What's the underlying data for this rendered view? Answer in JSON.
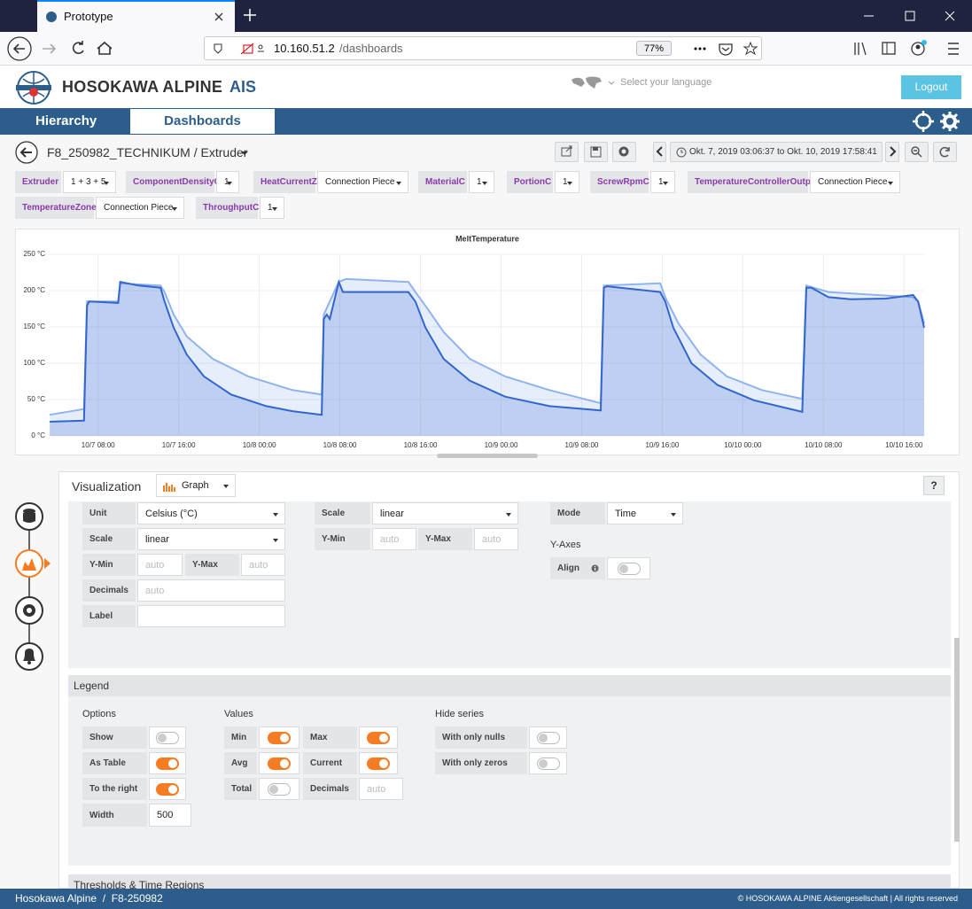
{
  "browser": {
    "tab_title": "Prototype",
    "url_host": "10.160.51.2",
    "url_path": "/dashboards",
    "zoom": "77%"
  },
  "header": {
    "brand": "HOSOKAWA ALPINE",
    "brand_suffix": "AIS",
    "language": "Select your language",
    "logout": "Logout"
  },
  "nav": {
    "tabs": [
      "Hierarchy",
      "Dashboards"
    ]
  },
  "breadcrumb": "F8_250982_TECHNIKUM / Extruder",
  "time_range": "Okt. 7, 2019 03:06:37 to Okt. 10, 2019 17:58:41",
  "variables": [
    {
      "name": "Extruder",
      "value": "1 + 3 + 5"
    },
    {
      "name": "ComponentDensityC",
      "value": "1"
    },
    {
      "name": "HeatCurrentZ",
      "value": "Connection Piece"
    },
    {
      "name": "MaterialC",
      "value": "1"
    },
    {
      "name": "PortionC",
      "value": "1"
    },
    {
      "name": "ScrewRpmC",
      "value": "1"
    },
    {
      "name": "TemperatureControllerOutput",
      "value": "Connection Piece"
    },
    {
      "name": "TemperatureZone",
      "value": "Connection Piece"
    },
    {
      "name": "ThroughputC",
      "value": "1"
    }
  ],
  "chart_data": {
    "type": "line",
    "title": "MeltTemperature",
    "area": true,
    "grid": true,
    "xlim": [
      3.1,
      90.0
    ],
    "xticks": [
      {
        "value": 8,
        "label": "10/7 08:00"
      },
      {
        "value": 16,
        "label": "10/7 16:00"
      },
      {
        "value": 24,
        "label": "10/8 00:00"
      },
      {
        "value": 32,
        "label": "10/8 08:00"
      },
      {
        "value": 40,
        "label": "10/8 16:00"
      },
      {
        "value": 48,
        "label": "10/9 00:00"
      },
      {
        "value": 56,
        "label": "10/9 08:00"
      },
      {
        "value": 64,
        "label": "10/9 16:00"
      },
      {
        "value": 72,
        "label": "10/10 00:00"
      },
      {
        "value": 80,
        "label": "10/10 08:00"
      },
      {
        "value": 88,
        "label": "10/10 16:00"
      }
    ],
    "ylim": [
      0,
      250
    ],
    "yticks": [
      {
        "value": 0,
        "label": "0 °C"
      },
      {
        "value": 50,
        "label": "50 °C"
      },
      {
        "value": 100,
        "label": "100 °C"
      },
      {
        "value": 150,
        "label": "150 °C"
      },
      {
        "value": 200,
        "label": "200 °C"
      },
      {
        "value": 250,
        "label": "250 °C"
      }
    ],
    "series": [
      {
        "color": "#8fb3ee",
        "x": [
          3.2,
          6.6,
          6.9,
          10.0,
          10.2,
          14.2,
          14.6,
          15.5,
          16.8,
          19.4,
          22.9,
          27.3,
          30.2,
          30.4,
          31.9,
          32.6,
          38.8,
          39.5,
          40.5,
          42.3,
          44.9,
          48.4,
          52.8,
          57.9,
          58.2,
          63.8,
          64.3,
          65.6,
          67.8,
          70.4,
          73.9,
          77.9,
          78.3,
          80.5,
          88.9,
          89.4,
          90.0
        ],
        "values": [
          29,
          37,
          185,
          185,
          210,
          207,
          198,
          167,
          137,
          106,
          82,
          63,
          57,
          167,
          212,
          216,
          212,
          198,
          179,
          143,
          106,
          82,
          63,
          45,
          207,
          210,
          191,
          155,
          112,
          82,
          63,
          51,
          207,
          198,
          191,
          185,
          155
        ]
      },
      {
        "color": "#3366cc",
        "x": [
          3.2,
          6.6,
          6.9,
          7.1,
          10.0,
          10.2,
          12.0,
          14.2,
          14.6,
          15.5,
          16.8,
          18.5,
          21.2,
          24.7,
          27.3,
          30.2,
          30.4,
          30.7,
          31.0,
          31.9,
          32.3,
          38.8,
          39.5,
          40.5,
          42.3,
          44.9,
          48.4,
          52.8,
          57.9,
          58.2,
          58.5,
          63.8,
          64.3,
          65.1,
          66.9,
          69.5,
          73.1,
          77.9,
          78.3,
          78.8,
          80.5,
          82.7,
          86.2,
          88.9,
          89.4,
          90.0
        ],
        "values": [
          19.5,
          21,
          179,
          185,
          183,
          212,
          207,
          204,
          185,
          149,
          112,
          82,
          57,
          41,
          34,
          29,
          161,
          167,
          161,
          212,
          198,
          198,
          185,
          149,
          106,
          76,
          54,
          41,
          35,
          204,
          206,
          198,
          185,
          149,
          100,
          70,
          49,
          33,
          204,
          204,
          191,
          188,
          189,
          194,
          185,
          149
        ]
      }
    ]
  },
  "editor": {
    "title": "Visualization",
    "visualization": "Graph",
    "left_axis": [
      {
        "label": "Unit",
        "value": "Celsius (°C)"
      },
      {
        "label": "Scale",
        "value": "linear"
      },
      {
        "label": "Y-Min",
        "placeholder": "auto"
      },
      {
        "label": "Y-Max",
        "placeholder": "auto"
      },
      {
        "label": "Decimals",
        "placeholder": "auto"
      },
      {
        "label": "Label"
      }
    ],
    "right_axis": [
      {
        "label": "Scale",
        "value": "linear"
      },
      {
        "label": "Y-Min",
        "placeholder": "auto"
      },
      {
        "label": "Y-Max",
        "placeholder": "auto"
      }
    ],
    "x_axis": [
      {
        "label": "Mode",
        "value": "Time"
      }
    ],
    "y_axes": {
      "title": "Y-Axes",
      "align": {
        "label": "Align",
        "on": false
      }
    }
  },
  "legend": {
    "title": "Legend",
    "options": {
      "title": "Options",
      "toggles": [
        {
          "label": "Show",
          "on": false
        },
        {
          "label": "As Table",
          "on": true
        },
        {
          "label": "To the right",
          "on": true
        }
      ],
      "width": {
        "label": "Width",
        "value": 500
      }
    },
    "values": {
      "title": "Values",
      "toggles": [
        {
          "label": "Min",
          "on": true
        },
        {
          "label": "Max",
          "on": true
        },
        {
          "label": "Avg",
          "on": true
        },
        {
          "label": "Current",
          "on": true
        },
        {
          "label": "Total",
          "on": false
        }
      ],
      "decimals": {
        "label": "Decimals",
        "placeholder": "auto"
      }
    },
    "hide_series": {
      "title": "Hide series",
      "toggles": [
        {
          "label": "With only nulls",
          "on": false
        },
        {
          "label": "With only zeros",
          "on": false
        }
      ]
    }
  },
  "next_section": "Thresholds & Time Regions",
  "footer": {
    "breadcrumb": "Hosokawa Alpine  /  F8-250982",
    "copyright": "© HOSOKAWA ALPINE Aktiengesellschaft | All rights reserved"
  }
}
